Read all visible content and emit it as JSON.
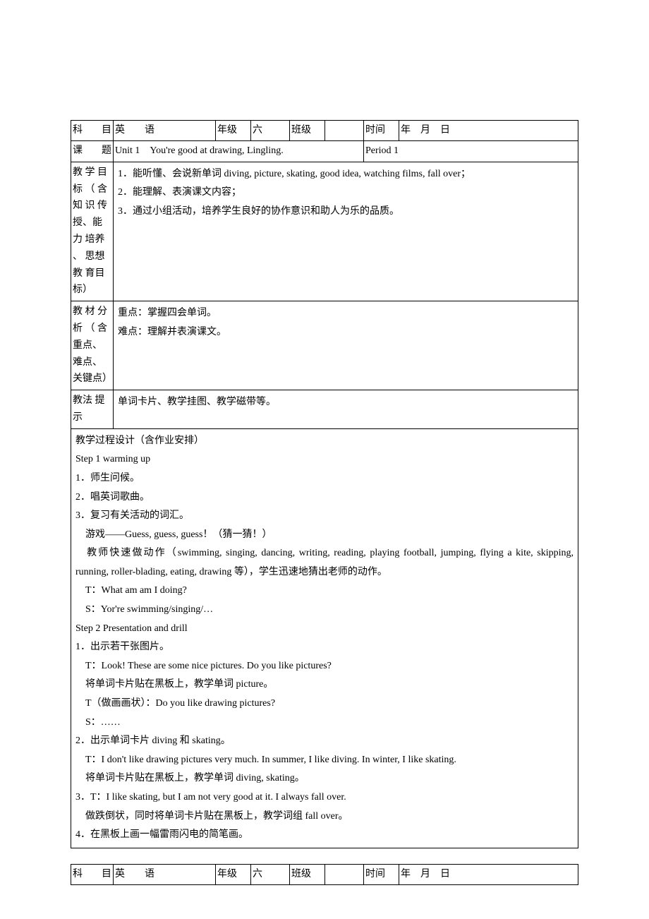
{
  "header1": {
    "subject_label": "科目",
    "subject_value_a": "英",
    "subject_value_b": "语",
    "grade_label": "年级",
    "grade_value": "六",
    "class_label": "班级",
    "class_value": "",
    "time_label": "时间",
    "time_value": "年　月　日"
  },
  "lesson1": {
    "lesson_label": "课题",
    "lesson_title": "Unit 1　You're good at drawing, Lingling.",
    "period": "Period  1"
  },
  "goals": {
    "label": "教 学 目标 （ 含知 识 传授、能 力 培养 、 思想 教 育目标）",
    "line1": "1．能听懂、会说新单词 diving, picture, skating, good idea, watching films, fall over；",
    "line2": "2．能理解、表演课文内容；",
    "line3": "3．通过小组活动，培养学生良好的协作意识和助人为乐的品质。"
  },
  "analysis": {
    "label": "教 材 分析 （ 含重点、难点、关键点）",
    "line1": "重点：掌握四会单词。",
    "line2": "难点：理解并表演课文。"
  },
  "method": {
    "label": "教法 提示",
    "text": "单词卡片、教学挂图、教学磁带等。"
  },
  "process": {
    "title": "教学过程设计（含作业安排）",
    "step1_title": " Step 1  warming up",
    "s1_1": "1．师生问候。",
    "s1_2": "2．唱英词歌曲。",
    "s1_3": "3．复习有关活动的词汇。",
    "s1_3a": "　游戏——Guess, guess, guess！（猜一猜！）",
    "s1_3b": "　教师快速做动作（swimming, singing, dancing, writing, reading, playing football, jumping, flying a kite, skipping, running, roller-blading, eating, drawing 等），学生迅速地猜出老师的动作。",
    "s1_3c": "　T：What am am I doing?",
    "s1_3d": "　S：Yor're swimming/singing/…",
    "step2_title": " Step 2  Presentation and drill",
    "s2_1": "1．出示若干张图片。",
    "s2_1a": "　T：Look! These are some nice pictures. Do you like pictures?",
    "s2_1b": "　将单词卡片贴在黑板上，教学单词 picture。",
    "s2_1c": "　T（做画画状）：Do you like drawing pictures?",
    "s2_1d": "　S：……",
    "s2_2": "2．出示单词卡片 diving 和 skating。",
    "s2_2a": "　T：I don't like drawing pictures very much. In summer, I like diving. In winter, I like skating.",
    "s2_2b": "　将单词卡片贴在黑板上，教学单词 diving, skating。",
    "s2_3": "3．T：I like skating, but I am not very good at it. I always fall over.",
    "s2_3a": "　做跌倒状，同时将单词卡片贴在黑板上，教学词组 fall over。",
    "s2_4": "4．在黑板上画一幅雷雨闪电的简笔画。"
  },
  "header2": {
    "subject_label": "科目",
    "subject_value_a": "英",
    "subject_value_b": "语",
    "grade_label": "年级",
    "grade_value": "六",
    "class_label": "班级",
    "class_value": "",
    "time_label": "时间",
    "time_value": "年　月　日"
  }
}
